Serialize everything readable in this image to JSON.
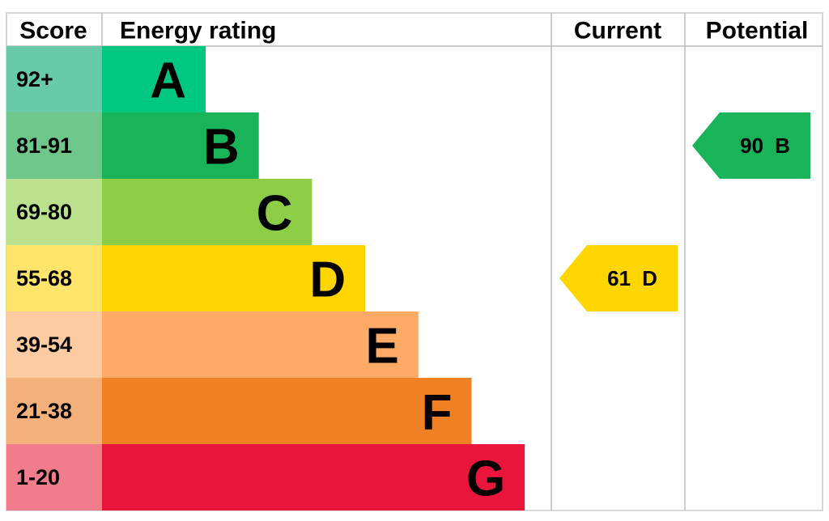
{
  "header": {
    "score": "Score",
    "energy_rating": "Energy rating",
    "current": "Current",
    "potential": "Potential"
  },
  "rows": [
    {
      "score": "92+",
      "letter": "A",
      "color": "#00c781",
      "score_color": "#68caa9"
    },
    {
      "score": "81-91",
      "letter": "B",
      "color": "#19b459",
      "score_color": "#6fc68b"
    },
    {
      "score": "69-80",
      "letter": "C",
      "color": "#8dce46",
      "score_color": "#bbe18f"
    },
    {
      "score": "55-68",
      "letter": "D",
      "color": "#ffd500",
      "score_color": "#ffe46b"
    },
    {
      "score": "39-54",
      "letter": "E",
      "color": "#fcaa65",
      "score_color": "#fdcba2"
    },
    {
      "score": "21-38",
      "letter": "F",
      "color": "#ef8023",
      "score_color": "#f4b07a"
    },
    {
      "score": "1-20",
      "letter": "G",
      "color": "#e9153b",
      "score_color": "#f17c8c"
    }
  ],
  "current": {
    "score": 61,
    "letter": "D"
  },
  "potential": {
    "score": 90,
    "letter": "B"
  }
}
